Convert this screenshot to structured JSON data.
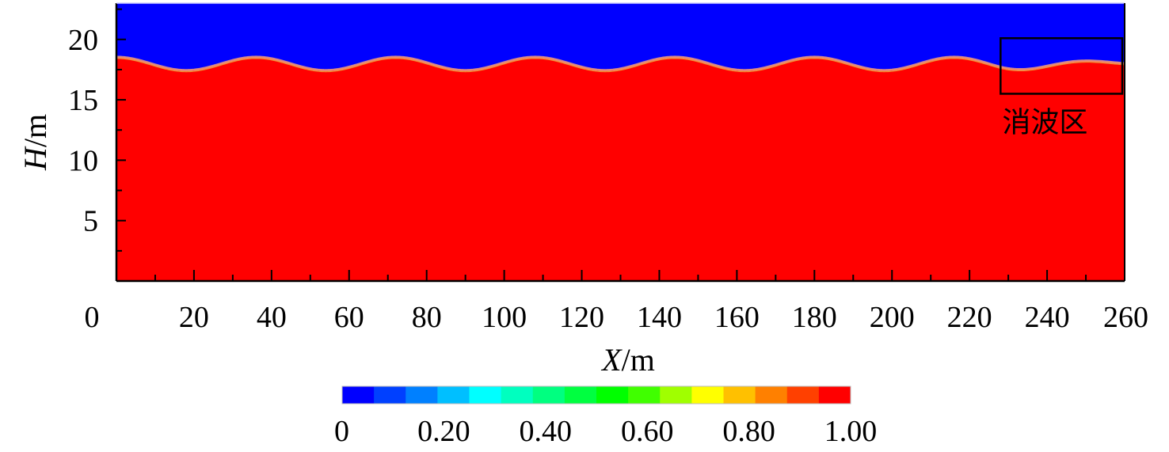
{
  "chart_data": {
    "type": "heatmap",
    "title": "",
    "xlabel": {
      "var": "X",
      "unit": "/m"
    },
    "ylabel": {
      "var": "H",
      "unit": "/m"
    },
    "xlim": [
      0,
      260
    ],
    "ylim": [
      0,
      23
    ],
    "xticks": [
      "0",
      "20",
      "40",
      "60",
      "80",
      "100",
      "120",
      "140",
      "160",
      "180",
      "200",
      "220",
      "240",
      "260"
    ],
    "yticks": [
      "5",
      "10",
      "15",
      "20"
    ],
    "field": {
      "upper_value": 0,
      "lower_value": 1.0,
      "free_surface": {
        "mean_level": 18.0,
        "amplitude": 0.55,
        "wavelength": 36,
        "damping_start_x": 228,
        "damping_end_amplitude": 0.12
      }
    },
    "annotation": {
      "label": "消波区",
      "x_range": [
        228,
        260
      ],
      "y_range": [
        15.5,
        20.1
      ]
    },
    "colorbar": {
      "colors": [
        "#0000ff",
        "#0040ff",
        "#0080ff",
        "#00bfff",
        "#00ffff",
        "#00ffbf",
        "#00ff80",
        "#00ff40",
        "#00ff00",
        "#40ff00",
        "#a0ff00",
        "#ffff00",
        "#ffc000",
        "#ff8000",
        "#ff4000",
        "#ff0000"
      ],
      "tick_values": [
        0,
        0.2,
        0.4,
        0.6,
        0.8,
        1.0
      ],
      "tick_labels": [
        "0",
        "0.20",
        "0.40",
        "0.60",
        "0.80",
        "1.00"
      ]
    }
  }
}
